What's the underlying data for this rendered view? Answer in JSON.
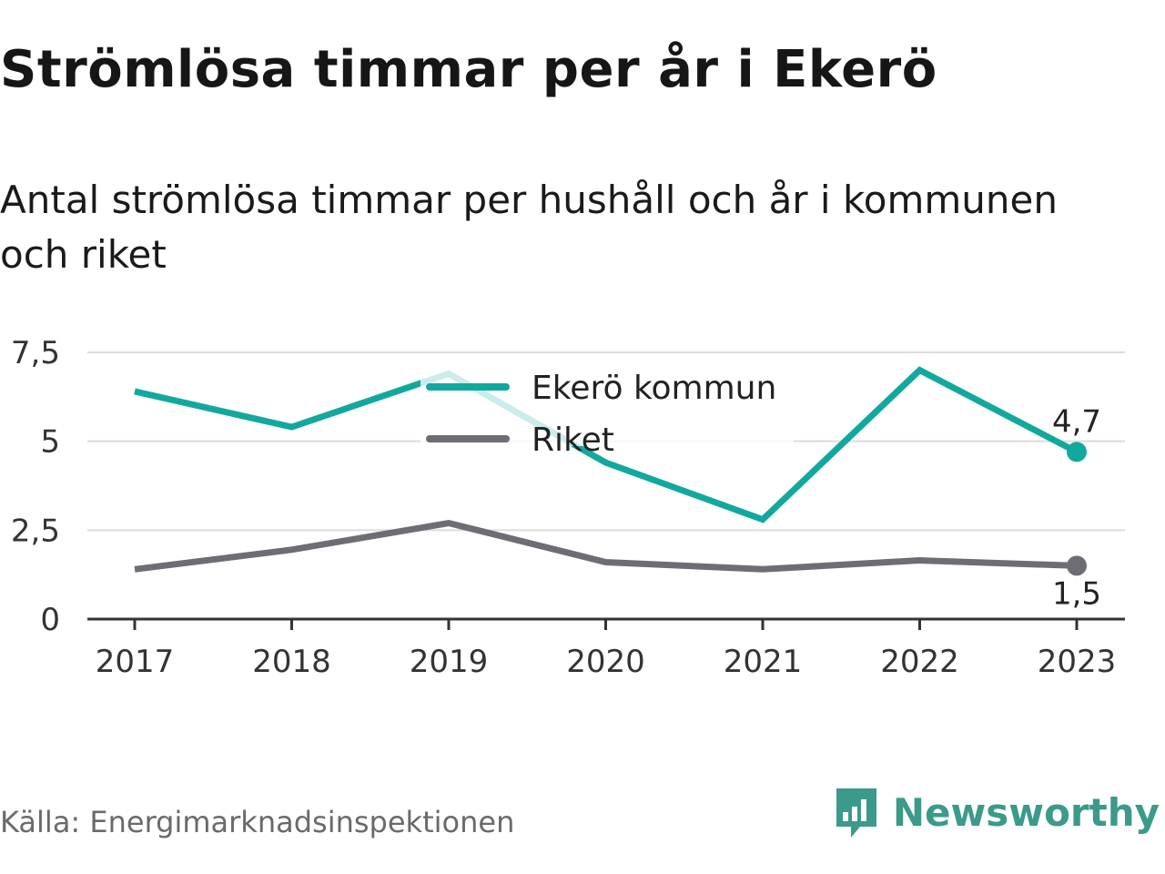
{
  "title": "Strömlösa timmar per år i Ekerö",
  "subtitle": "Antal strömlösa timmar per hushåll och år i kommunen och riket",
  "source": "Källa: Energimarknadsinspektionen",
  "brand": {
    "name": "Newsworthy",
    "icon": "newsworthy-logo-icon",
    "color": "#3b9a8a"
  },
  "chart_data": {
    "type": "line",
    "x": [
      2017,
      2018,
      2019,
      2020,
      2021,
      2022,
      2023
    ],
    "x_tick_labels": [
      "2017",
      "2018",
      "2019",
      "2020",
      "2021",
      "2022",
      "2023"
    ],
    "ylim": [
      0,
      7.5
    ],
    "y_ticks": [
      0,
      2.5,
      5,
      7.5
    ],
    "y_tick_labels": [
      "0",
      "2,5",
      "5",
      "7,5"
    ],
    "grid": true,
    "legend_position": "top-center",
    "series": [
      {
        "name": "Ekerö kommun",
        "color": "#13a89e",
        "values": [
          6.4,
          5.4,
          6.9,
          4.4,
          2.8,
          7.0,
          4.7
        ],
        "end_label": "4,7"
      },
      {
        "name": "Riket",
        "color": "#6e6d75",
        "values": [
          1.4,
          1.95,
          2.7,
          1.6,
          1.4,
          1.65,
          1.5
        ],
        "end_label": "1,5"
      }
    ]
  }
}
